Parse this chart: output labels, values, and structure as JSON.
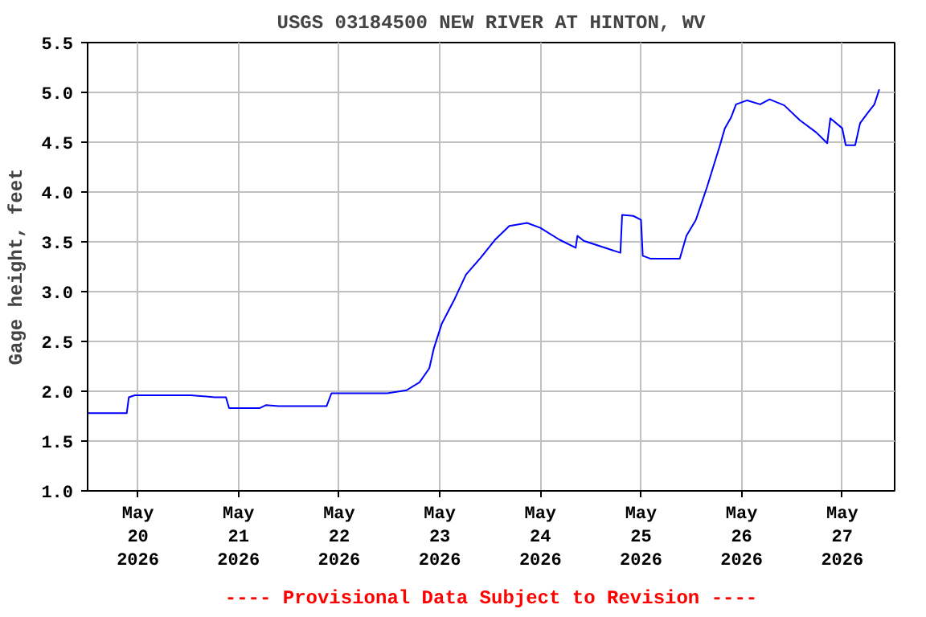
{
  "chart_data": {
    "type": "line",
    "title": "USGS 03184500 NEW RIVER AT HINTON, WV",
    "ylabel": "Gage height, feet",
    "annotations": [
      "---- Provisional Data Subject to Revision ----"
    ],
    "xlim": [
      "2026-05-19T12:00",
      "2026-05-27T12:30"
    ],
    "xticks": [
      {
        "value": "2026-05-20",
        "label": "May\n20\n2026"
      },
      {
        "value": "2026-05-21",
        "label": "May\n21\n2026"
      },
      {
        "value": "2026-05-22",
        "label": "May\n22\n2026"
      },
      {
        "value": "2026-05-23",
        "label": "May\n23\n2026"
      },
      {
        "value": "2026-05-24",
        "label": "May\n24\n2026"
      },
      {
        "value": "2026-05-25",
        "label": "May\n25\n2026"
      },
      {
        "value": "2026-05-26",
        "label": "May\n26\n2026"
      },
      {
        "value": "2026-05-27",
        "label": "May\n27\n2026"
      }
    ],
    "ylim": [
      1.0,
      5.5
    ],
    "yticks": [
      {
        "value": 1,
        "label": "1.0"
      },
      1.5,
      {
        "value": 2,
        "label": "2.0"
      },
      2.5,
      {
        "value": 3,
        "label": "3.0"
      },
      3.5,
      {
        "value": 4,
        "label": "4.0"
      },
      4.5,
      {
        "value": 5,
        "label": "5.0"
      },
      5.5
    ],
    "grid": true,
    "line_style": "solid",
    "series": [
      {
        "color": "#0000ff",
        "x": [
          "2026-05-19T12:00",
          "2026-05-19T21:20",
          "2026-05-19T21:50",
          "2026-05-19T23:15",
          "2026-05-20T12:35",
          "2026-05-20T18:20",
          "2026-05-20T21:00",
          "2026-05-20T21:45",
          "2026-05-21T05:00",
          "2026-05-21T06:30",
          "2026-05-21T09:35",
          "2026-05-21T21:00",
          "2026-05-21T22:10",
          "2026-05-22T11:30",
          "2026-05-22T16:05",
          "2026-05-22T19:10",
          "2026-05-22T21:30",
          "2026-05-22T22:35",
          "2026-05-23T00:30",
          "2026-05-23T03:35",
          "2026-05-23T06:15",
          "2026-05-23T09:45",
          "2026-05-23T13:10",
          "2026-05-23T16:35",
          "2026-05-23T20:50",
          "2026-05-24T00:00",
          "2026-05-24T04:35",
          "2026-05-24T08:25",
          "2026-05-24T08:50",
          "2026-05-24T10:20",
          "2026-05-24T19:05",
          "2026-05-24T19:30",
          "2026-05-24T22:10",
          "2026-05-25T00:00",
          "2026-05-25T00:25",
          "2026-05-25T02:20",
          "2026-05-25T09:15",
          "2026-05-25T10:50",
          "2026-05-25T13:05",
          "2026-05-25T15:45",
          "2026-05-25T18:50",
          "2026-05-25T20:00",
          "2026-05-25T21:30",
          "2026-05-25T22:40",
          "2026-05-26T01:20",
          "2026-05-26T04:25",
          "2026-05-26T06:40",
          "2026-05-26T10:10",
          "2026-05-26T13:55",
          "2026-05-26T17:45",
          "2026-05-26T20:25",
          "2026-05-26T21:10",
          "2026-05-27T00:00",
          "2026-05-27T00:50",
          "2026-05-27T03:05",
          "2026-05-27T04:15",
          "2026-05-27T06:10",
          "2026-05-27T07:40",
          "2026-05-27T08:50"
        ],
        "values": [
          1.78,
          1.78,
          1.94,
          1.96,
          1.96,
          1.94,
          1.94,
          1.83,
          1.83,
          1.86,
          1.85,
          1.85,
          1.98,
          1.98,
          2.01,
          2.09,
          2.23,
          2.43,
          2.68,
          2.93,
          3.17,
          3.34,
          3.52,
          3.66,
          3.69,
          3.64,
          3.52,
          3.44,
          3.56,
          3.51,
          3.39,
          3.77,
          3.76,
          3.72,
          3.36,
          3.33,
          3.33,
          3.56,
          3.72,
          4.05,
          4.47,
          4.64,
          4.75,
          4.88,
          4.92,
          4.88,
          4.93,
          4.87,
          4.72,
          4.6,
          4.49,
          4.74,
          4.64,
          4.47,
          4.47,
          4.69,
          4.8,
          4.88,
          5.03
        ]
      }
    ]
  }
}
